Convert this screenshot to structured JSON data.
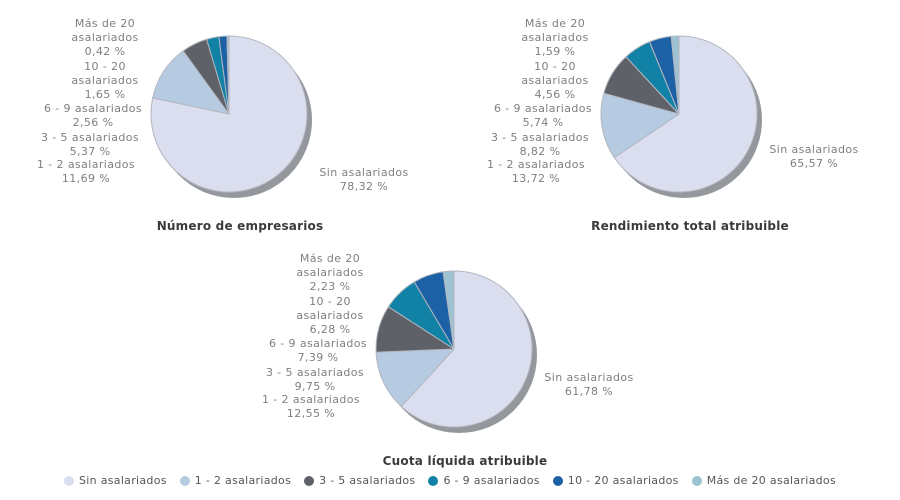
{
  "page": {
    "background": "#ffffff",
    "label_color": "#7f7f7f",
    "title_color": "#3b3b3b",
    "slice_stroke_color": "#b3b7c0",
    "shadow_color": "#94989c"
  },
  "legend": {
    "items": [
      {
        "label": "Sin asalariados",
        "color": "#dadeee"
      },
      {
        "label": "1 - 2 asalariados",
        "color": "#b6cbe2"
      },
      {
        "label": "3 - 5 asalariados",
        "color": "#5e6268"
      },
      {
        "label": "6 - 9 asalariados",
        "color": "#1182a6"
      },
      {
        "label": "10 - 20 asalariados",
        "color": "#1c60a6"
      },
      {
        "label": "Más de 20 asalariados",
        "color": "#9dc2d2"
      }
    ]
  },
  "chart_data": [
    {
      "type": "pie",
      "title": "Número de empresarios",
      "unit": "%",
      "start_angle": "top",
      "direction": "clockwise",
      "categories": [
        "Sin asalariados",
        "1 - 2 asalariados",
        "3 - 5 asalariados",
        "6 - 9 asalariados",
        "10 - 20 asalariados",
        "Más de 20 asalariados"
      ],
      "values": [
        78.32,
        11.69,
        5.37,
        2.56,
        1.65,
        0.42
      ],
      "callouts": [
        {
          "lines": [
            "Más de 20",
            "asalariados",
            "0,42 %"
          ]
        },
        {
          "lines": [
            "10 - 20",
            "asalariados",
            "1,65 %"
          ]
        },
        {
          "lines": [
            "6 - 9 asalariados",
            "2,56 %"
          ]
        },
        {
          "lines": [
            "3 - 5 asalariados",
            "5,37 %"
          ]
        },
        {
          "lines": [
            "1 - 2 asalariados",
            "11,69 %"
          ]
        },
        {
          "lines": [
            "Sin asalariados",
            "78,32 %"
          ]
        }
      ]
    },
    {
      "type": "pie",
      "title": "Rendimiento total atribuible",
      "unit": "%",
      "start_angle": "top",
      "direction": "clockwise",
      "categories": [
        "Sin asalariados",
        "1 - 2 asalariados",
        "3 - 5 asalariados",
        "6 - 9 asalariados",
        "10 - 20 asalariados",
        "Más de 20 asalariados"
      ],
      "values": [
        65.57,
        13.72,
        8.82,
        5.74,
        4.56,
        1.59
      ],
      "callouts": [
        {
          "lines": [
            "Más de 20",
            "asalariados",
            "1,59 %"
          ]
        },
        {
          "lines": [
            "10 - 20",
            "asalariados",
            "4,56 %"
          ]
        },
        {
          "lines": [
            "6 - 9 asalariados",
            "5,74 %"
          ]
        },
        {
          "lines": [
            "3 - 5 asalariados",
            "8,82 %"
          ]
        },
        {
          "lines": [
            "1 - 2 asalariados",
            "13,72 %"
          ]
        },
        {
          "lines": [
            "Sin asalariados",
            "65,57 %"
          ]
        }
      ]
    },
    {
      "type": "pie",
      "title": "Cuota líquida atribuible",
      "unit": "%",
      "start_angle": "top",
      "direction": "clockwise",
      "categories": [
        "Sin asalariados",
        "1 - 2 asalariados",
        "3 - 5 asalariados",
        "6 - 9 asalariados",
        "10 - 20 asalariados",
        "Más de 20 asalariados"
      ],
      "values": [
        61.78,
        12.55,
        9.75,
        7.39,
        6.28,
        2.23
      ],
      "callouts": [
        {
          "lines": [
            "Más de 20",
            "asalariados",
            "2,23 %"
          ]
        },
        {
          "lines": [
            "10 - 20",
            "asalariados",
            "6,28 %"
          ]
        },
        {
          "lines": [
            "6 - 9 asalariados",
            "7,39 %"
          ]
        },
        {
          "lines": [
            "3 - 5 asalariados",
            "9,75 %"
          ]
        },
        {
          "lines": [
            "1 - 2 asalariados",
            "12,55 %"
          ]
        },
        {
          "lines": [
            "Sin asalariados",
            "61,78 %"
          ]
        }
      ]
    }
  ]
}
